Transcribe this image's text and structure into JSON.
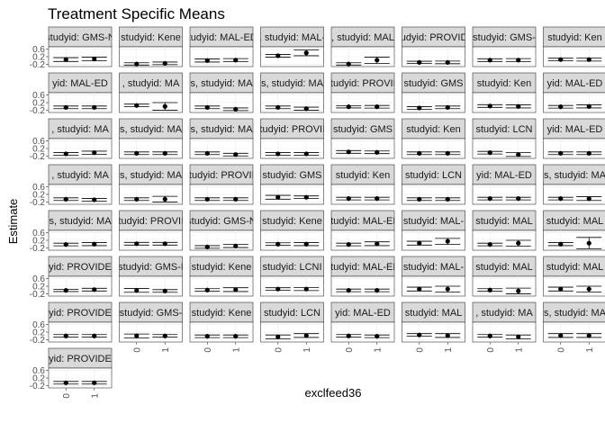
{
  "chart_data": {
    "type": "scatter",
    "title": "Treatment Specific Means",
    "xlabel": "exclfeed36",
    "ylabel": "Estimate",
    "x_categories": [
      "0",
      "1"
    ],
    "y_ticks": [
      -0.2,
      0.2,
      0.6
    ],
    "y_tick_labels": [
      "-0.2",
      "0.2",
      "0.6"
    ],
    "ylim": [
      -0.32,
      0.72
    ],
    "grid": true,
    "facets": [
      {
        "strip": "studyid: GMS-N",
        "points": [
          {
            "x": "0",
            "y": 0.05,
            "lo": -0.05,
            "hi": 0.15
          },
          {
            "x": "1",
            "y": 0.08,
            "lo": -0.02,
            "hi": 0.18
          }
        ]
      },
      {
        "strip": "studyid: Kene",
        "points": [
          {
            "x": "0",
            "y": -0.18,
            "lo": -0.24,
            "hi": -0.12
          },
          {
            "x": "1",
            "y": -0.15,
            "lo": -0.22,
            "hi": -0.08
          }
        ]
      },
      {
        "strip": "studyid: MAL-ED,",
        "points": [
          {
            "x": "0",
            "y": 0.0,
            "lo": -0.08,
            "hi": 0.08
          },
          {
            "x": "1",
            "y": 0.02,
            "lo": -0.06,
            "hi": 0.1
          }
        ]
      },
      {
        "strip": ", studyid: MAL-",
        "points": [
          {
            "x": "0",
            "y": 0.25,
            "lo": 0.18,
            "hi": 0.32
          },
          {
            "x": "1",
            "y": 0.4,
            "lo": 0.25,
            "hi": 0.55
          }
        ]
      },
      {
        "strip": ", studyid: MAL",
        "points": [
          {
            "x": "0",
            "y": -0.18,
            "lo": -0.24,
            "hi": -0.12
          },
          {
            "x": "1",
            "y": 0.02,
            "lo": -0.15,
            "hi": 0.18
          }
        ]
      },
      {
        "strip": "studyid: PROVIDE",
        "points": [
          {
            "x": "0",
            "y": -0.1,
            "lo": -0.16,
            "hi": -0.04
          },
          {
            "x": "1",
            "y": -0.1,
            "lo": -0.17,
            "hi": -0.03
          }
        ]
      },
      {
        "strip": "studyid: GMS-",
        "points": [
          {
            "x": "0",
            "y": 0.02,
            "lo": -0.05,
            "hi": 0.09
          },
          {
            "x": "1",
            "y": 0.02,
            "lo": -0.06,
            "hi": 0.1
          }
        ]
      },
      {
        "strip": "studyid: Ken",
        "points": [
          {
            "x": "0",
            "y": 0.05,
            "lo": -0.02,
            "hi": 0.12
          },
          {
            "x": "1",
            "y": 0.05,
            "lo": -0.03,
            "hi": 0.13
          }
        ]
      },
      {
        "strip": "yid: MAL-ED",
        "points": [
          {
            "x": "0",
            "y": -0.05,
            "lo": -0.12,
            "hi": 0.02
          },
          {
            "x": "1",
            "y": -0.05,
            "lo": -0.12,
            "hi": 0.02
          }
        ]
      },
      {
        "strip": ", studyid: MA",
        "points": [
          {
            "x": "0",
            "y": 0.05,
            "lo": -0.02,
            "hi": 0.12
          },
          {
            "x": "1",
            "y": 0.0,
            "lo": -0.2,
            "hi": 0.2
          }
        ]
      },
      {
        "strip": "s, studyid: MA",
        "points": [
          {
            "x": "0",
            "y": -0.05,
            "lo": -0.12,
            "hi": 0.02
          },
          {
            "x": "1",
            "y": -0.15,
            "lo": -0.22,
            "hi": -0.08
          }
        ]
      },
      {
        "strip": "s, studyid: MA",
        "points": [
          {
            "x": "0",
            "y": -0.05,
            "lo": -0.12,
            "hi": 0.02
          },
          {
            "x": "1",
            "y": -0.12,
            "lo": -0.2,
            "hi": -0.04
          }
        ]
      },
      {
        "strip": "studyid: PROVID",
        "points": [
          {
            "x": "0",
            "y": -0.02,
            "lo": -0.08,
            "hi": 0.04
          },
          {
            "x": "1",
            "y": -0.02,
            "lo": -0.09,
            "hi": 0.05
          }
        ]
      },
      {
        "strip": "studyid: GMS",
        "points": [
          {
            "x": "0",
            "y": -0.08,
            "lo": -0.15,
            "hi": -0.01
          },
          {
            "x": "1",
            "y": -0.05,
            "lo": -0.12,
            "hi": 0.02
          }
        ]
      },
      {
        "strip": "studyid: Ken",
        "points": [
          {
            "x": "0",
            "y": 0.02,
            "lo": -0.05,
            "hi": 0.09
          },
          {
            "x": "1",
            "y": 0.0,
            "lo": -0.08,
            "hi": 0.08
          }
        ]
      },
      {
        "strip": "yid: MAL-ED",
        "points": [
          {
            "x": "0",
            "y": -0.02,
            "lo": -0.09,
            "hi": 0.05
          },
          {
            "x": "1",
            "y": 0.0,
            "lo": -0.08,
            "hi": 0.08
          }
        ]
      },
      {
        "strip": ", studyid: MA",
        "points": [
          {
            "x": "0",
            "y": -0.08,
            "lo": -0.15,
            "hi": -0.01
          },
          {
            "x": "1",
            "y": -0.02,
            "lo": -0.1,
            "hi": 0.06
          }
        ]
      },
      {
        "strip": "s, studyid: MA",
        "points": [
          {
            "x": "0",
            "y": -0.05,
            "lo": -0.12,
            "hi": 0.02
          },
          {
            "x": "1",
            "y": -0.05,
            "lo": -0.12,
            "hi": 0.02
          }
        ]
      },
      {
        "strip": "s, studyid: MA",
        "points": [
          {
            "x": "0",
            "y": -0.05,
            "lo": -0.12,
            "hi": 0.02
          },
          {
            "x": "1",
            "y": -0.12,
            "lo": -0.19,
            "hi": -0.05
          }
        ]
      },
      {
        "strip": "studyid: PROVID",
        "points": [
          {
            "x": "0",
            "y": -0.08,
            "lo": -0.15,
            "hi": -0.01
          },
          {
            "x": "1",
            "y": -0.08,
            "lo": -0.15,
            "hi": -0.01
          }
        ]
      },
      {
        "strip": "studyid: GMS",
        "points": [
          {
            "x": "0",
            "y": 0.02,
            "lo": -0.05,
            "hi": 0.09
          },
          {
            "x": "1",
            "y": 0.0,
            "lo": -0.07,
            "hi": 0.07
          }
        ]
      },
      {
        "strip": "studyid: Ken",
        "points": [
          {
            "x": "0",
            "y": -0.05,
            "lo": -0.12,
            "hi": 0.02
          },
          {
            "x": "1",
            "y": -0.05,
            "lo": -0.12,
            "hi": 0.02
          }
        ]
      },
      {
        "strip": "studyid: LCN",
        "points": [
          {
            "x": "0",
            "y": -0.02,
            "lo": -0.09,
            "hi": 0.05
          },
          {
            "x": "1",
            "y": -0.12,
            "lo": -0.22,
            "hi": -0.02
          }
        ]
      },
      {
        "strip": "yid: MAL-ED",
        "points": [
          {
            "x": "0",
            "y": -0.05,
            "lo": -0.12,
            "hi": 0.02
          },
          {
            "x": "1",
            "y": -0.05,
            "lo": -0.12,
            "hi": 0.02
          }
        ]
      },
      {
        "strip": ", studyid: MA",
        "points": [
          {
            "x": "0",
            "y": -0.05,
            "lo": -0.12,
            "hi": 0.02
          },
          {
            "x": "1",
            "y": -0.08,
            "lo": -0.15,
            "hi": -0.01
          }
        ]
      },
      {
        "strip": "s, studyid: MA",
        "points": [
          {
            "x": "0",
            "y": -0.05,
            "lo": -0.12,
            "hi": 0.02
          },
          {
            "x": "1",
            "y": -0.05,
            "lo": -0.2,
            "hi": 0.1
          }
        ]
      },
      {
        "strip": "studyid: PROVID",
        "points": [
          {
            "x": "0",
            "y": -0.05,
            "lo": -0.12,
            "hi": 0.02
          },
          {
            "x": "1",
            "y": -0.05,
            "lo": -0.12,
            "hi": 0.02
          }
        ]
      },
      {
        "strip": "studyid: GMS",
        "points": [
          {
            "x": "0",
            "y": 0.05,
            "lo": -0.05,
            "hi": 0.15
          },
          {
            "x": "1",
            "y": 0.05,
            "lo": -0.02,
            "hi": 0.12
          }
        ]
      },
      {
        "strip": "studyid: Ken",
        "points": [
          {
            "x": "0",
            "y": -0.02,
            "lo": -0.09,
            "hi": 0.05
          },
          {
            "x": "1",
            "y": -0.02,
            "lo": -0.09,
            "hi": 0.05
          }
        ]
      },
      {
        "strip": "studyid: LCN",
        "points": [
          {
            "x": "0",
            "y": -0.05,
            "lo": -0.12,
            "hi": 0.02
          },
          {
            "x": "1",
            "y": -0.05,
            "lo": -0.12,
            "hi": 0.02
          }
        ]
      },
      {
        "strip": "yid: MAL-ED",
        "points": [
          {
            "x": "0",
            "y": -0.02,
            "lo": -0.09,
            "hi": 0.05
          },
          {
            "x": "1",
            "y": -0.02,
            "lo": -0.09,
            "hi": 0.05
          }
        ]
      },
      {
        "strip": "s, studyid: MA",
        "points": [
          {
            "x": "0",
            "y": -0.02,
            "lo": -0.09,
            "hi": 0.05
          },
          {
            "x": "1",
            "y": -0.02,
            "lo": -0.12,
            "hi": 0.08
          }
        ]
      },
      {
        "strip": "s, studyid: MA",
        "points": [
          {
            "x": "0",
            "y": -0.02,
            "lo": -0.09,
            "hi": 0.05
          },
          {
            "x": "1",
            "y": 0.0,
            "lo": -0.08,
            "hi": 0.08
          }
        ]
      },
      {
        "strip": "studyid: PROVID",
        "points": [
          {
            "x": "0",
            "y": 0.02,
            "lo": -0.05,
            "hi": 0.09
          },
          {
            "x": "1",
            "y": 0.02,
            "lo": -0.05,
            "hi": 0.09
          }
        ]
      },
      {
        "strip": "studyid: GMS-N",
        "points": [
          {
            "x": "0",
            "y": -0.15,
            "lo": -0.22,
            "hi": -0.08
          },
          {
            "x": "1",
            "y": -0.1,
            "lo": -0.18,
            "hi": -0.02
          }
        ]
      },
      {
        "strip": "studyid: Kene",
        "points": [
          {
            "x": "0",
            "y": 0.0,
            "lo": -0.07,
            "hi": 0.07
          },
          {
            "x": "1",
            "y": 0.0,
            "lo": -0.08,
            "hi": 0.08
          }
        ]
      },
      {
        "strip": "studyid: MAL-ED",
        "points": [
          {
            "x": "0",
            "y": -0.02,
            "lo": -0.09,
            "hi": 0.05
          },
          {
            "x": "1",
            "y": 0.02,
            "lo": -0.08,
            "hi": 0.12
          }
        ]
      },
      {
        "strip": "studyid: MAL-",
        "points": [
          {
            "x": "0",
            "y": 0.05,
            "lo": -0.05,
            "hi": 0.15
          },
          {
            "x": "1",
            "y": 0.15,
            "lo": -0.02,
            "hi": 0.3
          }
        ]
      },
      {
        "strip": "studyid: MAL",
        "points": [
          {
            "x": "0",
            "y": -0.02,
            "lo": -0.09,
            "hi": 0.05
          },
          {
            "x": "1",
            "y": 0.05,
            "lo": -0.1,
            "hi": 0.2
          }
        ]
      },
      {
        "strip": "studyid: MAL",
        "points": [
          {
            "x": "0",
            "y": 0.0,
            "lo": -0.08,
            "hi": 0.08
          },
          {
            "x": "1",
            "y": 0.05,
            "lo": -0.25,
            "hi": 0.35
          }
        ]
      },
      {
        "strip": "yid: PROVIDE",
        "points": [
          {
            "x": "0",
            "y": -0.02,
            "lo": -0.08,
            "hi": 0.04
          },
          {
            "x": "1",
            "y": 0.02,
            "lo": -0.05,
            "hi": 0.09
          }
        ]
      },
      {
        "strip": "studyid: GMS-I",
        "points": [
          {
            "x": "0",
            "y": -0.02,
            "lo": -0.12,
            "hi": 0.08
          },
          {
            "x": "1",
            "y": -0.05,
            "lo": -0.12,
            "hi": 0.02
          }
        ]
      },
      {
        "strip": "studyid: Kene",
        "points": [
          {
            "x": "0",
            "y": 0.0,
            "lo": -0.07,
            "hi": 0.07
          },
          {
            "x": "1",
            "y": 0.02,
            "lo": -0.08,
            "hi": 0.12
          }
        ]
      },
      {
        "strip": "studyid: LCNI",
        "points": [
          {
            "x": "0",
            "y": 0.05,
            "lo": -0.02,
            "hi": 0.12
          },
          {
            "x": "1",
            "y": 0.05,
            "lo": -0.03,
            "hi": 0.13
          }
        ]
      },
      {
        "strip": "studyid: MAL-ED",
        "points": [
          {
            "x": "0",
            "y": -0.02,
            "lo": -0.09,
            "hi": 0.05
          },
          {
            "x": "1",
            "y": -0.02,
            "lo": -0.09,
            "hi": 0.05
          }
        ]
      },
      {
        "strip": "studyid: MAL-",
        "points": [
          {
            "x": "0",
            "y": 0.05,
            "lo": -0.05,
            "hi": 0.15
          },
          {
            "x": "1",
            "y": 0.05,
            "lo": -0.1,
            "hi": 0.2
          }
        ]
      },
      {
        "strip": "studyid: MAL",
        "points": [
          {
            "x": "0",
            "y": 0.0,
            "lo": -0.07,
            "hi": 0.07
          },
          {
            "x": "1",
            "y": -0.05,
            "lo": -0.2,
            "hi": 0.1
          }
        ]
      },
      {
        "strip": "studyid: MAL",
        "points": [
          {
            "x": "0",
            "y": 0.05,
            "lo": -0.05,
            "hi": 0.15
          },
          {
            "x": "1",
            "y": 0.05,
            "lo": -0.1,
            "hi": 0.2
          }
        ]
      },
      {
        "strip": "yid: PROVIDE",
        "points": [
          {
            "x": "0",
            "y": 0.0,
            "lo": -0.07,
            "hi": 0.07
          },
          {
            "x": "1",
            "y": 0.0,
            "lo": -0.07,
            "hi": 0.07
          }
        ]
      },
      {
        "strip": "studyid: GMS-",
        "points": [
          {
            "x": "0",
            "y": 0.0,
            "lo": -0.1,
            "hi": 0.1
          },
          {
            "x": "1",
            "y": 0.0,
            "lo": -0.07,
            "hi": 0.07
          }
        ]
      },
      {
        "strip": "studyid: Kene",
        "points": [
          {
            "x": "0",
            "y": -0.02,
            "lo": -0.09,
            "hi": 0.05
          },
          {
            "x": "1",
            "y": -0.02,
            "lo": -0.09,
            "hi": 0.05
          }
        ]
      },
      {
        "strip": "studyid: LCN",
        "points": [
          {
            "x": "0",
            "y": -0.05,
            "lo": -0.15,
            "hi": 0.05
          },
          {
            "x": "1",
            "y": 0.02,
            "lo": -0.08,
            "hi": 0.12
          }
        ]
      },
      {
        "strip": "yid: MAL-ED",
        "points": [
          {
            "x": "0",
            "y": 0.0,
            "lo": -0.07,
            "hi": 0.07
          },
          {
            "x": "1",
            "y": -0.02,
            "lo": -0.09,
            "hi": 0.05
          }
        ]
      },
      {
        "strip": "studyid: MAL",
        "points": [
          {
            "x": "0",
            "y": 0.05,
            "lo": -0.02,
            "hi": 0.12
          },
          {
            "x": "1",
            "y": 0.02,
            "lo": -0.08,
            "hi": 0.12
          }
        ]
      },
      {
        "strip": ", studyid: MA",
        "points": [
          {
            "x": "0",
            "y": 0.0,
            "lo": -0.07,
            "hi": 0.07
          },
          {
            "x": "1",
            "y": -0.05,
            "lo": -0.15,
            "hi": 0.05
          }
        ]
      },
      {
        "strip": "s, studyid: MA",
        "points": [
          {
            "x": "0",
            "y": 0.02,
            "lo": -0.08,
            "hi": 0.12
          },
          {
            "x": "1",
            "y": 0.02,
            "lo": -0.08,
            "hi": 0.12
          }
        ]
      },
      {
        "strip": "yid: PROVIDE",
        "points": [
          {
            "x": "0",
            "y": -0.05,
            "lo": -0.12,
            "hi": 0.02
          },
          {
            "x": "1",
            "y": -0.05,
            "lo": -0.12,
            "hi": 0.02
          }
        ]
      }
    ]
  }
}
